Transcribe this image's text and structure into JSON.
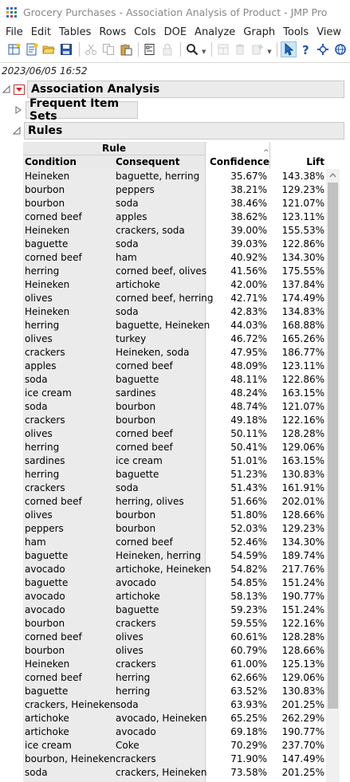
{
  "window": {
    "title": "Grocery Purchases - Association Analysis of Product - JMP Pro"
  },
  "menu": [
    "File",
    "Edit",
    "Tables",
    "Rows",
    "Cols",
    "DOE",
    "Analyze",
    "Graph",
    "Tools",
    "View"
  ],
  "toolbar_icons": [
    "new-data-table-icon",
    "new-script-icon",
    "open-icon",
    "save-icon",
    "cut-icon",
    "copy-icon",
    "paste-icon",
    "journal-icon",
    "lock-icon",
    "search-icon",
    "layout-icon",
    "delete-icon",
    "new-icon",
    "arrow-cursor-icon",
    "help-icon",
    "crosshair-icon",
    "globe-icon"
  ],
  "report": {
    "timestamp": "2023/06/05 16:52",
    "section_title": "Association Analysis",
    "frequent_item_sets_title": "Frequent Item Sets",
    "rules_title": "Rules"
  },
  "table": {
    "group_header": "Rule",
    "columns": [
      "Condition",
      "Consequent",
      "Confidence",
      "Lift"
    ],
    "sorted_column": "Confidence",
    "sort_direction": "ascending",
    "rows": [
      [
        "Heineken",
        "baguette, herring",
        "35.67%",
        "143.38%"
      ],
      [
        "bourbon",
        "peppers",
        "38.21%",
        "129.23%"
      ],
      [
        "bourbon",
        "soda",
        "38.46%",
        "121.07%"
      ],
      [
        "corned beef",
        "apples",
        "38.62%",
        "123.11%"
      ],
      [
        "Heineken",
        "crackers, soda",
        "39.00%",
        "155.53%"
      ],
      [
        "baguette",
        "soda",
        "39.03%",
        "122.86%"
      ],
      [
        "corned beef",
        "ham",
        "40.92%",
        "134.30%"
      ],
      [
        "herring",
        "corned beef, olives",
        "41.56%",
        "175.55%"
      ],
      [
        "Heineken",
        "artichoke",
        "42.00%",
        "137.84%"
      ],
      [
        "olives",
        "corned beef, herring",
        "42.71%",
        "174.49%"
      ],
      [
        "Heineken",
        "soda",
        "42.83%",
        "134.83%"
      ],
      [
        "herring",
        "baguette, Heineken",
        "44.03%",
        "168.88%"
      ],
      [
        "olives",
        "turkey",
        "46.72%",
        "165.26%"
      ],
      [
        "crackers",
        "Heineken, soda",
        "47.95%",
        "186.77%"
      ],
      [
        "apples",
        "corned beef",
        "48.09%",
        "123.11%"
      ],
      [
        "soda",
        "baguette",
        "48.11%",
        "122.86%"
      ],
      [
        "ice cream",
        "sardines",
        "48.24%",
        "163.15%"
      ],
      [
        "soda",
        "bourbon",
        "48.74%",
        "121.07%"
      ],
      [
        "crackers",
        "bourbon",
        "49.18%",
        "122.16%"
      ],
      [
        "olives",
        "corned beef",
        "50.11%",
        "128.28%"
      ],
      [
        "herring",
        "corned beef",
        "50.41%",
        "129.06%"
      ],
      [
        "sardines",
        "ice cream",
        "51.01%",
        "163.15%"
      ],
      [
        "herring",
        "baguette",
        "51.23%",
        "130.83%"
      ],
      [
        "crackers",
        "soda",
        "51.43%",
        "161.91%"
      ],
      [
        "corned beef",
        "herring, olives",
        "51.66%",
        "202.01%"
      ],
      [
        "olives",
        "bourbon",
        "51.80%",
        "128.66%"
      ],
      [
        "peppers",
        "bourbon",
        "52.03%",
        "129.23%"
      ],
      [
        "ham",
        "corned beef",
        "52.46%",
        "134.30%"
      ],
      [
        "baguette",
        "Heineken, herring",
        "54.59%",
        "189.74%"
      ],
      [
        "avocado",
        "artichoke, Heineken",
        "54.82%",
        "217.76%"
      ],
      [
        "baguette",
        "avocado",
        "54.85%",
        "151.24%"
      ],
      [
        "avocado",
        "artichoke",
        "58.13%",
        "190.77%"
      ],
      [
        "avocado",
        "baguette",
        "59.23%",
        "151.24%"
      ],
      [
        "bourbon",
        "crackers",
        "59.55%",
        "122.16%"
      ],
      [
        "corned beef",
        "olives",
        "60.61%",
        "128.28%"
      ],
      [
        "bourbon",
        "olives",
        "60.79%",
        "128.66%"
      ],
      [
        "Heineken",
        "crackers",
        "61.00%",
        "125.13%"
      ],
      [
        "corned beef",
        "herring",
        "62.66%",
        "129.06%"
      ],
      [
        "baguette",
        "herring",
        "63.52%",
        "130.83%"
      ],
      [
        "crackers, Heineken",
        "soda",
        "63.93%",
        "201.25%"
      ],
      [
        "artichoke",
        "avocado, Heineken",
        "65.25%",
        "262.29%"
      ],
      [
        "artichoke",
        "avocado",
        "69.18%",
        "190.77%"
      ],
      [
        "ice cream",
        "Coke",
        "70.29%",
        "237.70%"
      ],
      [
        "bourbon, Heineken",
        "crackers",
        "71.90%",
        "147.49%"
      ],
      [
        "soda",
        "crackers, Heineken",
        "73.58%",
        "201.25%"
      ]
    ]
  }
}
